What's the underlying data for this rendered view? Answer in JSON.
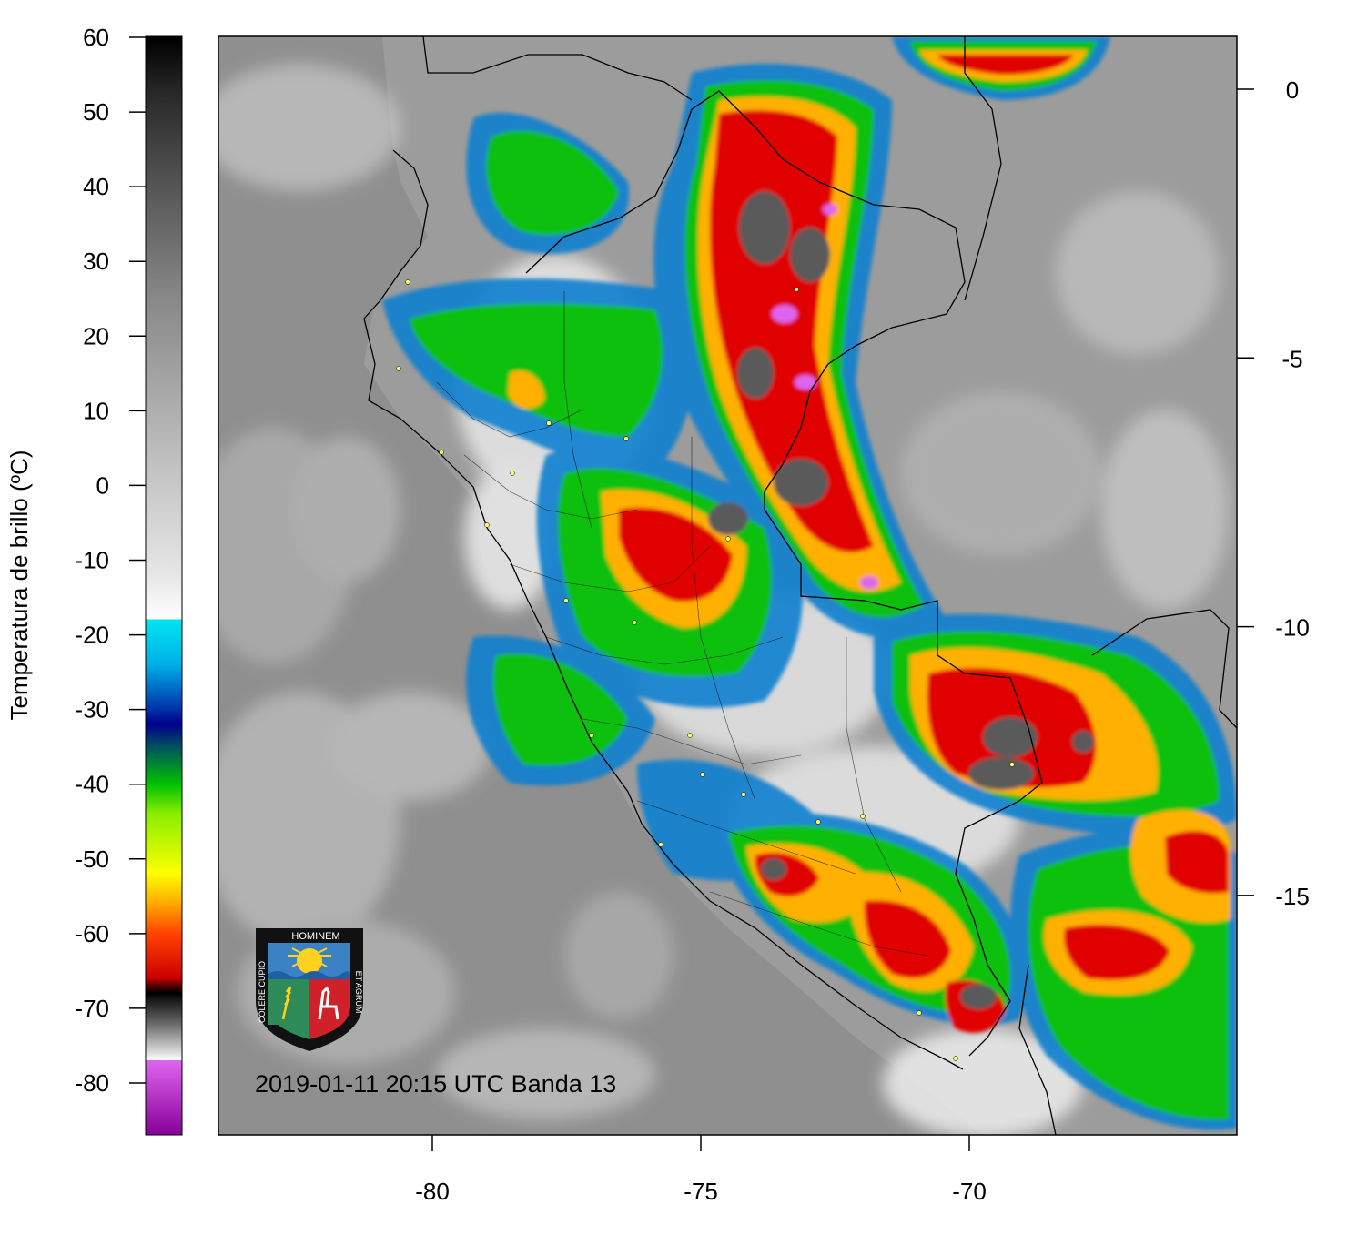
{
  "colorbar": {
    "title": "Temperatura de brillo (ºC)",
    "ticks": [
      "60",
      "50",
      "40",
      "30",
      "20",
      "10",
      "0",
      "-10",
      "-20",
      "-30",
      "-40",
      "-50",
      "-60",
      "-70",
      "-80"
    ],
    "range": [
      -87,
      60
    ],
    "stops": [
      {
        "t": 60,
        "c": "#000000"
      },
      {
        "t": 52,
        "c": "#2a2a2a"
      },
      {
        "t": 40,
        "c": "#555555"
      },
      {
        "t": 25,
        "c": "#888888"
      },
      {
        "t": 5,
        "c": "#bbbbbb"
      },
      {
        "t": -12,
        "c": "#e6e6e6"
      },
      {
        "t": -18,
        "c": "#ffffff"
      },
      {
        "t": -18.01,
        "c": "#00e5ee"
      },
      {
        "t": -24,
        "c": "#00b0e8"
      },
      {
        "t": -30,
        "c": "#0033aa"
      },
      {
        "t": -32,
        "c": "#00008b"
      },
      {
        "t": -35,
        "c": "#005060"
      },
      {
        "t": -40,
        "c": "#00c000"
      },
      {
        "t": -44,
        "c": "#88ee00"
      },
      {
        "t": -52,
        "c": "#ffff00"
      },
      {
        "t": -56,
        "c": "#ffaa00"
      },
      {
        "t": -60,
        "c": "#ff4400"
      },
      {
        "t": -66,
        "c": "#cc0000"
      },
      {
        "t": -67,
        "c": "#550000"
      },
      {
        "t": -68,
        "c": "#000000"
      },
      {
        "t": -72,
        "c": "#666666"
      },
      {
        "t": -76,
        "c": "#dddddd"
      },
      {
        "t": -77,
        "c": "#ffffff"
      },
      {
        "t": -77.01,
        "c": "#dd66ee"
      },
      {
        "t": -87,
        "c": "#880099"
      }
    ]
  },
  "map": {
    "x_ticks": [
      "-80",
      "-75",
      "-70"
    ],
    "y_ticks": [
      "0",
      "-5",
      "-10",
      "-15"
    ],
    "lon_range": [
      -84,
      -65
    ],
    "lat_range": [
      1,
      -19.5
    ],
    "annotation": "2019-01-11 20:15 UTC Banda 13",
    "colors": {
      "ocean": "#8f8f8f",
      "land": "#9a9a9a",
      "cloud_low": "#e6e6e6",
      "cold_edge": "#00b0e8",
      "cold_green": "#00c000",
      "cold_yellow": "#ffe000",
      "cold_red": "#e00000",
      "overshoot": "#dd66ee"
    }
  },
  "logo": {
    "top_text": "HOMINEM",
    "left_text": "COLERE CUPIO",
    "right_text": "ET AGRUM",
    "colors": {
      "sky": "#3b82c4",
      "sun": "#ffd21f",
      "field": "#2e8b57",
      "shield_red": "#d0212a"
    }
  }
}
